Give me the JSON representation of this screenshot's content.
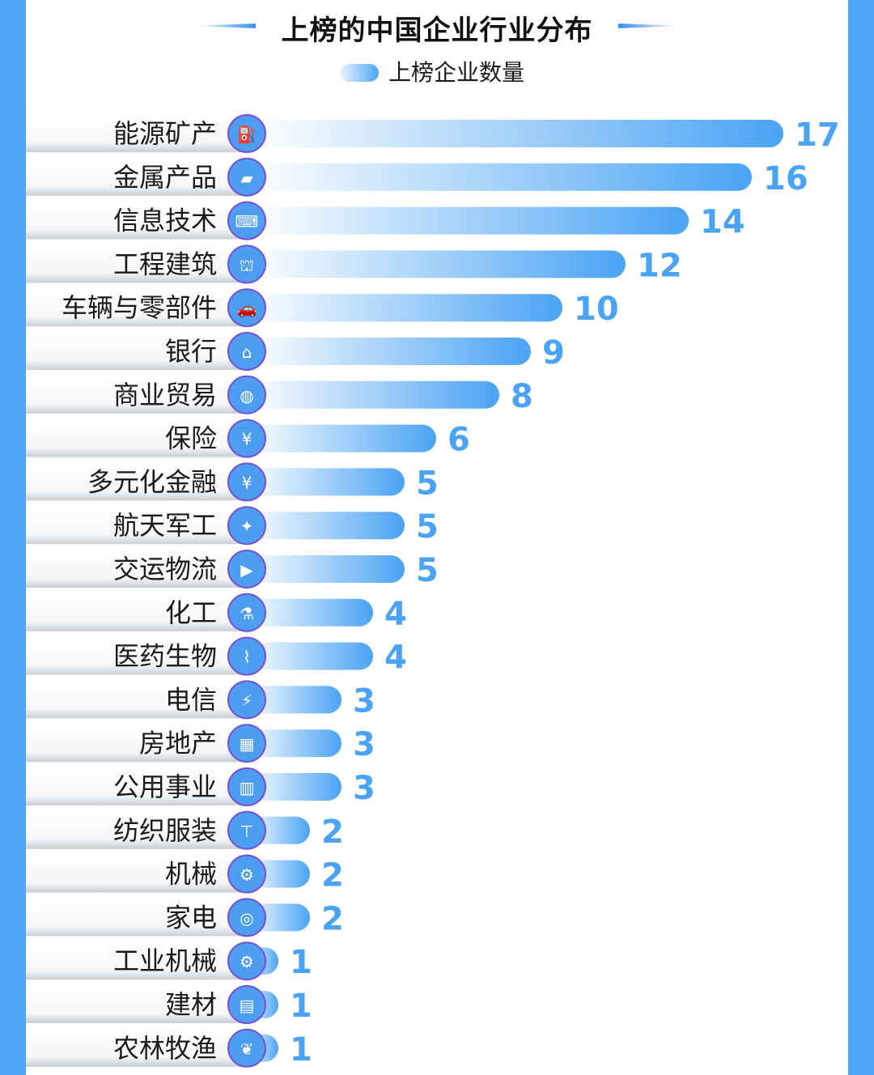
{
  "chart_data": {
    "type": "bar",
    "orientation": "horizontal",
    "title": "上榜的中国企业行业分布",
    "legend": [
      "上榜企业数量"
    ],
    "legend_position": "top-center",
    "series": [
      {
        "name": "上榜企业数量",
        "values": [
          17,
          16,
          14,
          12,
          10,
          9,
          8,
          6,
          5,
          5,
          5,
          4,
          4,
          3,
          3,
          3,
          2,
          2,
          2,
          1,
          1,
          1
        ]
      }
    ],
    "categories": [
      "能源矿产",
      "金属产品",
      "信息技术",
      "工程建筑",
      "车辆与零部件",
      "银行",
      "商业贸易",
      "保险",
      "多元化金融",
      "航天军工",
      "交运物流",
      "化工",
      "医药生物",
      "电信",
      "房地产",
      "公用事业",
      "纺织服装",
      "机械",
      "家电",
      "工业机械",
      "建材",
      "农林牧渔"
    ],
    "icons": [
      "oil-pump-icon",
      "metal-ingot-icon",
      "computer-code-icon",
      "crane-icon",
      "car-icon",
      "bank-icon",
      "globe-icon",
      "shield-yen-icon",
      "yen-exchange-icon",
      "satellite-icon",
      "truck-icon",
      "flask-icon",
      "dna-icon",
      "power-tower-icon",
      "building-icon",
      "factory-icon",
      "tshirt-icon",
      "robot-arm-icon",
      "washing-machine-icon",
      "industrial-arm-icon",
      "bricks-icon",
      "sprout-icon"
    ],
    "xlabel": "",
    "ylabel": "",
    "xlim": [
      0,
      17
    ],
    "grid": false
  },
  "colors": {
    "accent": "#4da6f7",
    "bar_start": "#ffffff",
    "bar_end": "#4aa3f4",
    "value_text": "#4aa3f4",
    "icon_fill": "#4d9ef0",
    "icon_ring": "#7a4fd8"
  }
}
